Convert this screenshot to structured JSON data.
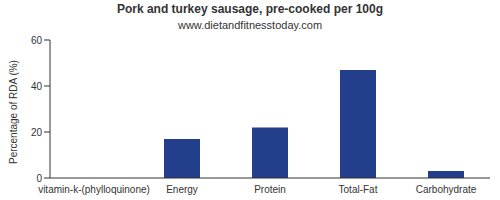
{
  "chart_data": {
    "type": "bar",
    "title": "Pork and turkey sausage, pre-cooked per 100g",
    "subtitle": "www.dietandfitnesstoday.com",
    "y_label": "Percentage of RDA (%)",
    "categories": [
      "vitamin-k-(phylloquinone)",
      "Energy",
      "Protein",
      "Total-Fat",
      "Carbohydrate"
    ],
    "values": [
      0,
      17,
      22,
      47,
      3
    ],
    "color": "#233e8b",
    "ylim": [
      0,
      60
    ],
    "yticks": [
      0,
      20,
      40,
      60
    ],
    "grid": false
  }
}
